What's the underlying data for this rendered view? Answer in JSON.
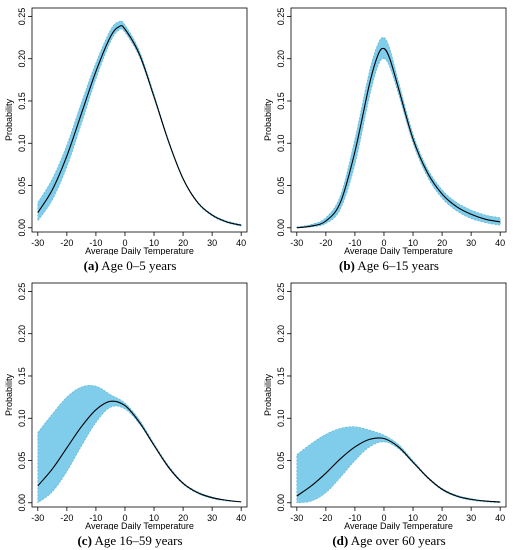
{
  "chart_data": [
    {
      "id": "a",
      "type": "area",
      "caption_label": "(a)",
      "caption_text": " Age 0–5 years",
      "xlabel": "Average Daily Temperature",
      "ylabel": "Probability",
      "xlim": [
        -32,
        42
      ],
      "ylim": [
        -0.005,
        0.26
      ],
      "xticks": [
        -30,
        -20,
        -10,
        0,
        10,
        20,
        30,
        40
      ],
      "yticks": [
        0.0,
        0.05,
        0.1,
        0.15,
        0.2,
        0.25
      ],
      "ytick_labels": [
        "0.00",
        "0.05",
        "0.10",
        "0.15",
        "0.20",
        "0.25"
      ],
      "x": [
        -30,
        -25,
        -20,
        -15,
        -10,
        -5,
        -2,
        0,
        5,
        10,
        15,
        20,
        25,
        30,
        35,
        40
      ],
      "mean": [
        0.018,
        0.045,
        0.085,
        0.135,
        0.185,
        0.226,
        0.238,
        0.235,
        0.205,
        0.155,
        0.102,
        0.058,
        0.03,
        0.015,
        0.007,
        0.003
      ],
      "lower": [
        0.008,
        0.033,
        0.072,
        0.123,
        0.176,
        0.22,
        0.234,
        0.231,
        0.202,
        0.153,
        0.101,
        0.057,
        0.029,
        0.014,
        0.006,
        0.002
      ],
      "upper": [
        0.03,
        0.058,
        0.098,
        0.148,
        0.195,
        0.234,
        0.244,
        0.24,
        0.209,
        0.158,
        0.104,
        0.059,
        0.031,
        0.016,
        0.008,
        0.004
      ]
    },
    {
      "id": "b",
      "type": "area",
      "caption_label": "(b)",
      "caption_text": " Age 6–15 years",
      "xlabel": "Average Daily Temperature",
      "ylabel": "Probability",
      "xlim": [
        -32,
        42
      ],
      "ylim": [
        -0.005,
        0.26
      ],
      "xticks": [
        -30,
        -20,
        -10,
        0,
        10,
        20,
        30,
        40
      ],
      "yticks": [
        0.0,
        0.05,
        0.1,
        0.15,
        0.2,
        0.25
      ],
      "ytick_labels": [
        "0.00",
        "0.05",
        "0.10",
        "0.15",
        "0.20",
        "0.25"
      ],
      "x": [
        -30,
        -25,
        -20,
        -15,
        -10,
        -5,
        -2,
        0,
        2,
        5,
        10,
        15,
        20,
        25,
        30,
        35,
        40
      ],
      "mean": [
        0.0,
        0.002,
        0.008,
        0.03,
        0.09,
        0.17,
        0.205,
        0.212,
        0.2,
        0.165,
        0.105,
        0.065,
        0.04,
        0.025,
        0.016,
        0.01,
        0.007
      ],
      "lower": [
        0.0,
        0.001,
        0.005,
        0.022,
        0.075,
        0.155,
        0.192,
        0.2,
        0.19,
        0.158,
        0.1,
        0.06,
        0.035,
        0.02,
        0.011,
        0.006,
        0.003
      ],
      "upper": [
        0.001,
        0.004,
        0.012,
        0.038,
        0.105,
        0.185,
        0.218,
        0.225,
        0.212,
        0.173,
        0.111,
        0.07,
        0.045,
        0.03,
        0.021,
        0.015,
        0.012
      ]
    },
    {
      "id": "c",
      "type": "area",
      "caption_label": "(c)",
      "caption_text": " Age 16–59 years",
      "xlabel": "Average Daily Temperature",
      "ylabel": "Probability",
      "xlim": [
        -32,
        42
      ],
      "ylim": [
        -0.005,
        0.26
      ],
      "xticks": [
        -30,
        -20,
        -10,
        0,
        10,
        20,
        30,
        40
      ],
      "yticks": [
        0.0,
        0.05,
        0.1,
        0.15,
        0.2,
        0.25
      ],
      "ytick_labels": [
        "0.00",
        "0.05",
        "0.10",
        "0.15",
        "0.20",
        "0.25"
      ],
      "x": [
        -30,
        -25,
        -20,
        -15,
        -10,
        -5,
        0,
        5,
        10,
        15,
        20,
        25,
        30,
        35,
        40
      ],
      "mean": [
        0.02,
        0.04,
        0.065,
        0.09,
        0.11,
        0.12,
        0.115,
        0.095,
        0.068,
        0.042,
        0.023,
        0.012,
        0.006,
        0.003,
        0.001
      ],
      "lower": [
        0.0,
        0.013,
        0.037,
        0.067,
        0.095,
        0.113,
        0.111,
        0.093,
        0.067,
        0.041,
        0.022,
        0.011,
        0.005,
        0.002,
        0.001
      ],
      "upper": [
        0.083,
        0.105,
        0.125,
        0.137,
        0.138,
        0.128,
        0.118,
        0.098,
        0.07,
        0.044,
        0.024,
        0.013,
        0.007,
        0.003,
        0.001
      ]
    },
    {
      "id": "d",
      "type": "area",
      "caption_label": "(d)",
      "caption_text": " Age over 60 years",
      "xlabel": "Average Daily Temperature",
      "ylabel": "Probability",
      "xlim": [
        -32,
        42
      ],
      "ylim": [
        -0.005,
        0.26
      ],
      "xticks": [
        -30,
        -20,
        -10,
        0,
        10,
        20,
        30,
        40
      ],
      "yticks": [
        0.0,
        0.05,
        0.1,
        0.15,
        0.2,
        0.25
      ],
      "ytick_labels": [
        "0.00",
        "0.05",
        "0.10",
        "0.15",
        "0.20",
        "0.25"
      ],
      "x": [
        -30,
        -25,
        -20,
        -15,
        -10,
        -5,
        0,
        5,
        10,
        15,
        20,
        25,
        30,
        35,
        40
      ],
      "mean": [
        0.008,
        0.02,
        0.035,
        0.052,
        0.066,
        0.075,
        0.076,
        0.066,
        0.048,
        0.03,
        0.016,
        0.008,
        0.004,
        0.002,
        0.001
      ],
      "lower": [
        0.0,
        0.002,
        0.012,
        0.03,
        0.05,
        0.066,
        0.072,
        0.064,
        0.047,
        0.029,
        0.015,
        0.007,
        0.003,
        0.001,
        0.0
      ],
      "upper": [
        0.057,
        0.07,
        0.081,
        0.088,
        0.09,
        0.086,
        0.08,
        0.069,
        0.05,
        0.031,
        0.017,
        0.009,
        0.005,
        0.002,
        0.001
      ]
    }
  ],
  "colors": {
    "band": "#7fcdea",
    "band_edge": "#5aaed3",
    "line": "#000000"
  }
}
